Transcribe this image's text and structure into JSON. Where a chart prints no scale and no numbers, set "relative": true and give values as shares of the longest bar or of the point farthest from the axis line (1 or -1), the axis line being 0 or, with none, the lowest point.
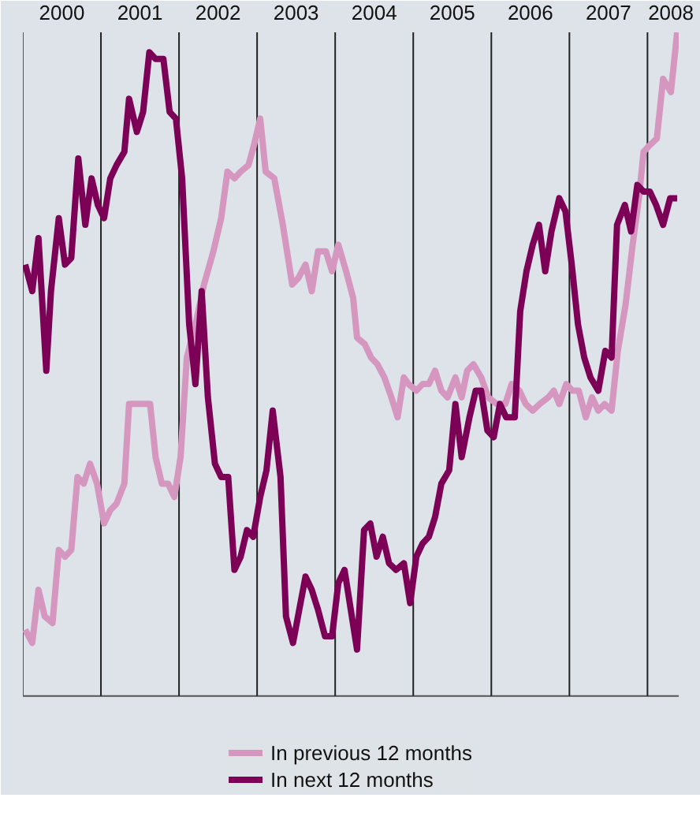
{
  "chart_data": {
    "type": "line",
    "relative": true,
    "xlim": [
      2000,
      2008.4
    ],
    "xticks": [
      {
        "value": 2000.5,
        "label": "2000"
      },
      {
        "value": 2001.5,
        "label": "2001"
      },
      {
        "value": 2002.5,
        "label": "2002"
      },
      {
        "value": 2003.5,
        "label": "2003"
      },
      {
        "value": 2004.5,
        "label": "2004"
      },
      {
        "value": 2005.5,
        "label": "2005"
      },
      {
        "value": 2006.5,
        "label": "2006"
      },
      {
        "value": 2007.5,
        "label": "2007"
      },
      {
        "value": 2008.3,
        "label": "2008"
      }
    ],
    "tick_labels": "x",
    "grid": false,
    "legend": "bottom",
    "marker": "none",
    "line_style": "solid",
    "ref_lines": [
      {
        "axis": "x",
        "value": 2000,
        "color": "#555555"
      },
      {
        "axis": "x",
        "value": 2001,
        "color": "#222222"
      },
      {
        "axis": "x",
        "value": 2002,
        "color": "#222222"
      },
      {
        "axis": "x",
        "value": 2003,
        "color": "#222222"
      },
      {
        "axis": "x",
        "value": 2004,
        "color": "#222222"
      },
      {
        "axis": "x",
        "value": 2005,
        "color": "#222222"
      },
      {
        "axis": "x",
        "value": 2006,
        "color": "#222222"
      },
      {
        "axis": "x",
        "value": 2007,
        "color": "#222222"
      },
      {
        "axis": "x",
        "value": 2008,
        "color": "#222222"
      }
    ],
    "series": [
      {
        "name": "In previous 12 months",
        "color": "#d597c0",
        "x": [
          2000.03,
          2000.12,
          2000.2,
          2000.28,
          2000.38,
          2000.46,
          2000.54,
          2000.62,
          2000.7,
          2000.78,
          2000.86,
          2000.95,
          2001.04,
          2001.12,
          2001.2,
          2001.3,
          2001.36,
          2001.46,
          2001.63,
          2001.7,
          2001.78,
          2001.86,
          2001.94,
          2002.02,
          2002.1,
          2002.23,
          2002.32,
          2002.44,
          2002.54,
          2002.62,
          2002.71,
          2002.79,
          2002.89,
          2002.96,
          2003.04,
          2003.11,
          2003.22,
          2003.33,
          2003.45,
          2003.53,
          2003.62,
          2003.7,
          2003.78,
          2003.88,
          2003.96,
          2004.04,
          2004.14,
          2004.23,
          2004.28,
          2004.38,
          2004.46,
          2004.54,
          2004.63,
          2004.72,
          2004.8,
          2004.88,
          2004.94,
          2005.04,
          2005.12,
          2005.2,
          2005.28,
          2005.36,
          2005.44,
          2005.54,
          2005.62,
          2005.69,
          2005.77,
          2005.87,
          2005.96,
          2006.07,
          2006.18,
          2006.26,
          2006.36,
          2006.44,
          2006.53,
          2006.62,
          2006.73,
          2006.8,
          2006.87,
          2006.96,
          2007.04,
          2007.12,
          2007.21,
          2007.29,
          2007.37,
          2007.45,
          2007.54,
          2007.62,
          2007.72,
          2007.81,
          2007.89,
          2007.95,
          2008.03,
          2008.12,
          2008.2,
          2008.3,
          2008.38
        ],
        "values": [
          0.1,
          0.08,
          0.16,
          0.12,
          0.11,
          0.22,
          0.21,
          0.22,
          0.33,
          0.32,
          0.35,
          0.32,
          0.26,
          0.28,
          0.29,
          0.32,
          0.44,
          0.44,
          0.44,
          0.36,
          0.32,
          0.32,
          0.3,
          0.36,
          0.51,
          0.57,
          0.62,
          0.67,
          0.72,
          0.79,
          0.78,
          0.79,
          0.8,
          0.83,
          0.87,
          0.79,
          0.78,
          0.71,
          0.62,
          0.63,
          0.65,
          0.61,
          0.67,
          0.67,
          0.64,
          0.68,
          0.64,
          0.6,
          0.54,
          0.53,
          0.51,
          0.5,
          0.48,
          0.45,
          0.42,
          0.48,
          0.47,
          0.46,
          0.47,
          0.47,
          0.49,
          0.46,
          0.45,
          0.48,
          0.45,
          0.49,
          0.5,
          0.48,
          0.45,
          0.44,
          0.44,
          0.47,
          0.46,
          0.44,
          0.43,
          0.44,
          0.45,
          0.46,
          0.44,
          0.47,
          0.46,
          0.46,
          0.42,
          0.45,
          0.43,
          0.44,
          0.43,
          0.52,
          0.59,
          0.68,
          0.75,
          0.82,
          0.83,
          0.84,
          0.93,
          0.91,
          1.0
        ]
      },
      {
        "name": "In next 12 months",
        "color": "#7d0057",
        "x": [
          2000.03,
          2000.12,
          2000.2,
          2000.3,
          2000.36,
          2000.46,
          2000.54,
          2000.62,
          2000.71,
          2000.8,
          2000.88,
          2000.96,
          2001.04,
          2001.12,
          2001.2,
          2001.3,
          2001.36,
          2001.46,
          2001.54,
          2001.62,
          2001.7,
          2001.8,
          2001.88,
          2001.96,
          2002.04,
          2002.13,
          2002.21,
          2002.29,
          2002.37,
          2002.46,
          2002.54,
          2002.63,
          2002.71,
          2002.79,
          2002.87,
          2002.95,
          2003.04,
          2003.12,
          2003.2,
          2003.3,
          2003.37,
          2003.46,
          2003.54,
          2003.62,
          2003.7,
          2003.78,
          2003.87,
          2003.96,
          2004.04,
          2004.12,
          2004.2,
          2004.28,
          2004.37,
          2004.45,
          2004.53,
          2004.61,
          2004.69,
          2004.78,
          2004.88,
          2004.96,
          2005.04,
          2005.12,
          2005.2,
          2005.28,
          2005.36,
          2005.46,
          2005.54,
          2005.62,
          2005.72,
          2005.8,
          2005.87,
          2005.95,
          2006.03,
          2006.11,
          2006.19,
          2006.3,
          2006.37,
          2006.45,
          2006.53,
          2006.61,
          2006.69,
          2006.77,
          2006.87,
          2006.95,
          2007.03,
          2007.11,
          2007.19,
          2007.27,
          2007.37,
          2007.46,
          2007.54,
          2007.61,
          2007.71,
          2007.79,
          2007.87,
          2007.95,
          2008.03,
          2008.11,
          2008.2,
          2008.29,
          2008.38
        ],
        "values": [
          0.65,
          0.61,
          0.69,
          0.49,
          0.61,
          0.72,
          0.65,
          0.66,
          0.81,
          0.71,
          0.78,
          0.74,
          0.72,
          0.78,
          0.8,
          0.82,
          0.9,
          0.85,
          0.88,
          0.97,
          0.96,
          0.96,
          0.88,
          0.87,
          0.78,
          0.56,
          0.47,
          0.61,
          0.45,
          0.35,
          0.33,
          0.33,
          0.19,
          0.21,
          0.25,
          0.24,
          0.3,
          0.34,
          0.43,
          0.33,
          0.12,
          0.08,
          0.13,
          0.18,
          0.16,
          0.13,
          0.09,
          0.09,
          0.17,
          0.19,
          0.13,
          0.07,
          0.25,
          0.26,
          0.21,
          0.24,
          0.2,
          0.19,
          0.2,
          0.14,
          0.21,
          0.23,
          0.24,
          0.27,
          0.32,
          0.34,
          0.44,
          0.36,
          0.42,
          0.46,
          0.46,
          0.4,
          0.39,
          0.44,
          0.42,
          0.42,
          0.58,
          0.64,
          0.68,
          0.71,
          0.64,
          0.7,
          0.75,
          0.73,
          0.65,
          0.56,
          0.51,
          0.48,
          0.46,
          0.52,
          0.51,
          0.71,
          0.74,
          0.7,
          0.77,
          0.76,
          0.76,
          0.74,
          0.71,
          0.75,
          0.75
        ]
      }
    ]
  }
}
